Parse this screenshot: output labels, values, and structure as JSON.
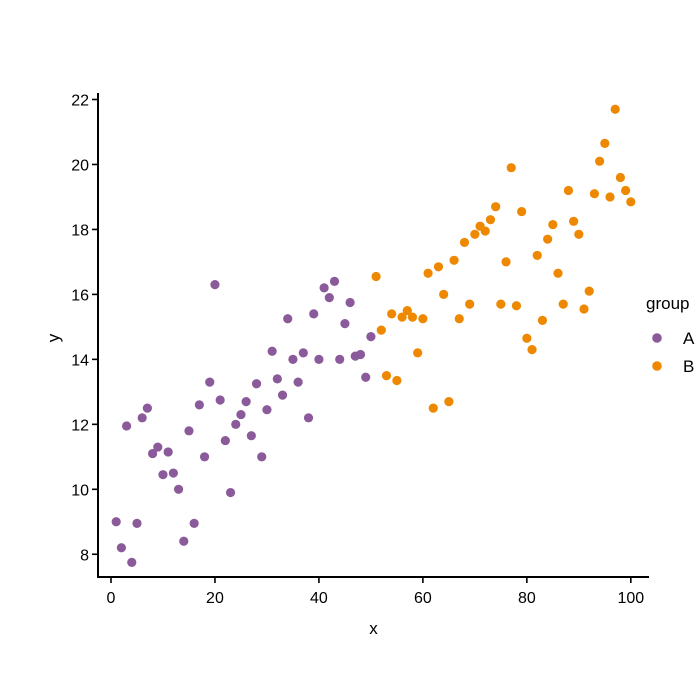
{
  "chart_data": {
    "type": "scatter",
    "xlabel": "x",
    "ylabel": "y",
    "xlim": [
      -2.5,
      103.5
    ],
    "ylim": [
      7.3,
      22.2
    ],
    "xticks": [
      0,
      20,
      40,
      60,
      80,
      100
    ],
    "yticks": [
      8,
      10,
      12,
      14,
      16,
      18,
      20,
      22
    ],
    "grid": false,
    "legend": {
      "title": "group",
      "position": "right"
    },
    "series": [
      {
        "name": "A",
        "color": "#8B5A9A",
        "points": [
          [
            1,
            9.0
          ],
          [
            2,
            8.2
          ],
          [
            3,
            11.95
          ],
          [
            4,
            7.75
          ],
          [
            5,
            8.95
          ],
          [
            6,
            12.2
          ],
          [
            7,
            12.5
          ],
          [
            8,
            11.1
          ],
          [
            9,
            11.3
          ],
          [
            10,
            10.45
          ],
          [
            11,
            11.15
          ],
          [
            12,
            10.5
          ],
          [
            13,
            10.0
          ],
          [
            14,
            8.4
          ],
          [
            15,
            11.8
          ],
          [
            16,
            8.95
          ],
          [
            17,
            12.6
          ],
          [
            18,
            11.0
          ],
          [
            19,
            13.3
          ],
          [
            20,
            16.3
          ],
          [
            21,
            12.75
          ],
          [
            22,
            11.5
          ],
          [
            23,
            9.9
          ],
          [
            24,
            12.0
          ],
          [
            25,
            12.3
          ],
          [
            26,
            12.7
          ],
          [
            27,
            11.65
          ],
          [
            28,
            13.25
          ],
          [
            29,
            11.0
          ],
          [
            30,
            12.45
          ],
          [
            31,
            14.25
          ],
          [
            32,
            13.4
          ],
          [
            33,
            12.9
          ],
          [
            34,
            15.25
          ],
          [
            35,
            14.0
          ],
          [
            36,
            13.3
          ],
          [
            37,
            14.2
          ],
          [
            38,
            12.2
          ],
          [
            39,
            15.4
          ],
          [
            40,
            14.0
          ],
          [
            41,
            16.2
          ],
          [
            42,
            15.9
          ],
          [
            43,
            16.4
          ],
          [
            44,
            14.0
          ],
          [
            45,
            15.1
          ],
          [
            46,
            15.75
          ],
          [
            47,
            14.1
          ],
          [
            48,
            14.15
          ],
          [
            49,
            13.45
          ],
          [
            50,
            14.7
          ]
        ]
      },
      {
        "name": "B",
        "color": "#EE8800",
        "points": [
          [
            51,
            16.55
          ],
          [
            52,
            14.9
          ],
          [
            53,
            13.5
          ],
          [
            54,
            15.4
          ],
          [
            55,
            13.35
          ],
          [
            56,
            15.3
          ],
          [
            57,
            15.5
          ],
          [
            58,
            15.3
          ],
          [
            59,
            14.2
          ],
          [
            60,
            15.25
          ],
          [
            61,
            16.65
          ],
          [
            62,
            12.5
          ],
          [
            63,
            16.85
          ],
          [
            64,
            16.0
          ],
          [
            65,
            12.7
          ],
          [
            66,
            17.05
          ],
          [
            67,
            15.25
          ],
          [
            68,
            17.6
          ],
          [
            69,
            15.7
          ],
          [
            70,
            17.85
          ],
          [
            71,
            18.1
          ],
          [
            72,
            17.95
          ],
          [
            73,
            18.3
          ],
          [
            74,
            18.7
          ],
          [
            75,
            15.7
          ],
          [
            76,
            17.0
          ],
          [
            77,
            19.9
          ],
          [
            78,
            15.65
          ],
          [
            79,
            18.55
          ],
          [
            80,
            14.65
          ],
          [
            81,
            14.3
          ],
          [
            82,
            17.2
          ],
          [
            83,
            15.2
          ],
          [
            84,
            17.7
          ],
          [
            85,
            18.15
          ],
          [
            86,
            16.65
          ],
          [
            87,
            15.7
          ],
          [
            88,
            19.2
          ],
          [
            89,
            18.25
          ],
          [
            90,
            17.85
          ],
          [
            91,
            15.55
          ],
          [
            92,
            16.1
          ],
          [
            93,
            19.1
          ],
          [
            94,
            20.1
          ],
          [
            95,
            20.65
          ],
          [
            96,
            19.0
          ],
          [
            97,
            21.7
          ],
          [
            98,
            19.6
          ],
          [
            99,
            19.2
          ],
          [
            100,
            18.85
          ]
        ]
      }
    ]
  }
}
